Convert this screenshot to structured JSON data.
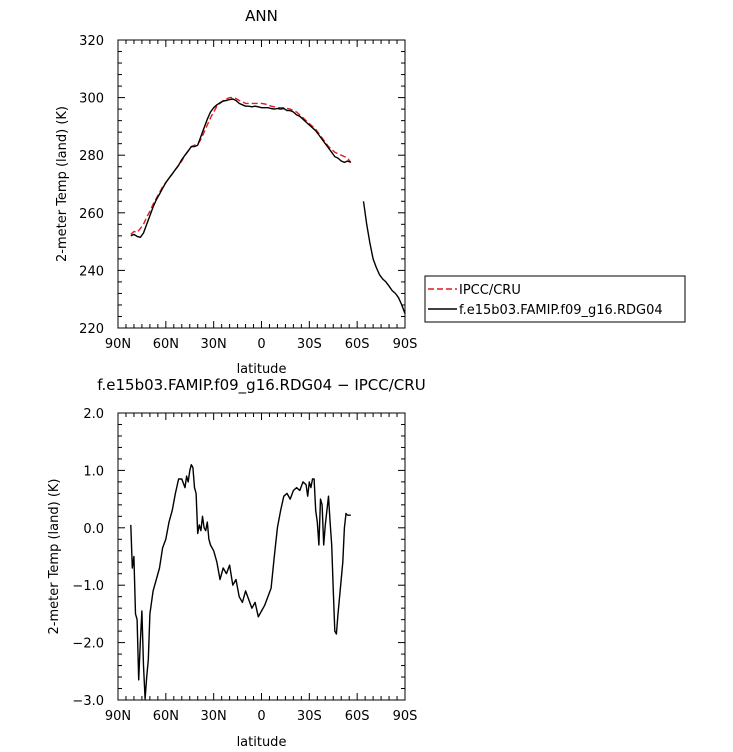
{
  "chart_data": [
    {
      "type": "line",
      "title": "ANN",
      "xlabel": "latitude",
      "ylabel": "2-meter Temp (land) (K)",
      "xlim": [
        90,
        -90
      ],
      "ylim": [
        220,
        320
      ],
      "xticks": [
        90,
        60,
        30,
        0,
        -30,
        -60,
        -90
      ],
      "xtick_labels": [
        "90N",
        "60N",
        "30N",
        "0",
        "30S",
        "60S",
        "90S"
      ],
      "yticks": [
        220,
        240,
        260,
        280,
        300,
        320
      ],
      "ytick_labels": [
        "220",
        "240",
        "260",
        "280",
        "300",
        "320"
      ],
      "legend_position": "outside-right",
      "series": [
        {
          "name": "IPCC/CRU",
          "color": "#e41a1c",
          "dash": "dashed",
          "x": [
            82,
            80,
            78,
            76,
            74,
            72,
            70,
            68,
            66,
            64,
            62,
            60,
            58,
            56,
            54,
            52,
            50,
            48,
            46,
            44,
            42,
            40,
            38,
            36,
            34,
            32,
            30,
            28,
            26,
            24,
            22,
            20,
            18,
            16,
            14,
            12,
            10,
            8,
            6,
            4,
            2,
            0,
            -2,
            -4,
            -6,
            -8,
            -10,
            -12,
            -14,
            -16,
            -18,
            -20,
            -22,
            -24,
            -26,
            -28,
            -30,
            -32,
            -34,
            -36,
            -38,
            -40,
            -42,
            -44,
            -46,
            -48,
            -50,
            -52,
            -54,
            -56
          ],
          "y": [
            252.5,
            253.5,
            253.2,
            254.5,
            256.0,
            258.5,
            260.5,
            263.0,
            265.0,
            267.0,
            269.0,
            270.5,
            272.0,
            273.5,
            275.0,
            276.5,
            278.0,
            280.0,
            281.5,
            283.0,
            283.5,
            283.8,
            285.5,
            288.0,
            290.5,
            293.0,
            295.0,
            297.0,
            298.0,
            299.0,
            299.5,
            300.0,
            300.0,
            299.7,
            299.0,
            298.5,
            298.0,
            298.0,
            298.0,
            298.0,
            298.0,
            298.0,
            297.8,
            297.5,
            297.0,
            296.8,
            296.5,
            296.5,
            296.5,
            296.2,
            296.0,
            295.5,
            295.0,
            294.0,
            293.0,
            292.0,
            291.0,
            290.0,
            289.0,
            287.5,
            286.0,
            284.5,
            283.0,
            282.0,
            281.0,
            280.5,
            280.0,
            279.5,
            279.0,
            277.5
          ]
        },
        {
          "name": "f.e15b03.FAMIP.f09_g16.RDG04",
          "color": "#000000",
          "dash": "solid",
          "segments": [
            {
              "x": [
                82,
                80,
                78,
                76,
                74,
                72,
                70,
                68,
                66,
                64,
                62,
                60,
                58,
                56,
                54,
                52,
                50,
                48,
                46,
                44,
                42,
                40,
                38,
                36,
                34,
                32,
                30,
                28,
                26,
                24,
                22,
                20,
                18,
                16,
                14,
                12,
                10,
                8,
                6,
                4,
                2,
                0,
                -2,
                -4,
                -6,
                -8,
                -10,
                -12,
                -14,
                -16,
                -18,
                -20,
                -22,
                -24,
                -26,
                -28,
                -30,
                -32,
                -34,
                -36,
                -38,
                -40,
                -42,
                -44,
                -46,
                -48,
                -50,
                -52,
                -54,
                -56
              ],
              "y": [
                252.0,
                252.5,
                251.8,
                251.5,
                253.0,
                256.0,
                259.0,
                262.0,
                264.5,
                266.5,
                268.5,
                270.5,
                272.0,
                273.5,
                275.0,
                276.5,
                278.5,
                280.0,
                281.5,
                283.0,
                283.0,
                283.5,
                286.5,
                289.5,
                292.5,
                295.0,
                296.5,
                297.5,
                298.2,
                298.8,
                299.0,
                299.3,
                299.5,
                299.0,
                298.0,
                297.5,
                297.0,
                297.0,
                296.8,
                297.0,
                296.8,
                296.5,
                296.5,
                296.5,
                296.2,
                296.0,
                296.2,
                296.0,
                296.2,
                295.5,
                295.5,
                295.0,
                294.0,
                293.5,
                292.5,
                291.5,
                290.5,
                289.5,
                288.5,
                287.0,
                285.5,
                284.0,
                282.5,
                281.0,
                279.5,
                279.0,
                278.0,
                277.5,
                278.0,
                277.5
              ]
            },
            {
              "x": [
                -64,
                -66,
                -68,
                -70,
                -72,
                -74,
                -76,
                -78,
                -80,
                -82,
                -84,
                -86,
                -88,
                -90
              ],
              "y": [
                264.0,
                256.0,
                249.5,
                244.0,
                241.0,
                238.5,
                237.0,
                236.0,
                234.5,
                233.0,
                232.0,
                230.5,
                228.0,
                225.0
              ]
            }
          ]
        }
      ]
    },
    {
      "type": "line",
      "title": "f.e15b03.FAMIP.f09_g16.RDG04 − IPCC/CRU",
      "xlabel": "latitude",
      "ylabel": "2-meter Temp (land) (K)",
      "xlim": [
        90,
        -90
      ],
      "ylim": [
        -3.0,
        2.0
      ],
      "xticks": [
        90,
        60,
        30,
        0,
        -30,
        -60,
        -90
      ],
      "xtick_labels": [
        "90N",
        "60N",
        "30N",
        "0",
        "30S",
        "60S",
        "90S"
      ],
      "yticks": [
        -3.0,
        -2.0,
        -1.0,
        0.0,
        1.0,
        2.0
      ],
      "ytick_labels": [
        "−3.0",
        "−2.0",
        "−1.0",
        "0.0",
        "1.0",
        "2.0"
      ],
      "series": [
        {
          "color": "#000000",
          "dash": "solid",
          "x": [
            82,
            81,
            80,
            79,
            78,
            77,
            76,
            75,
            74,
            73,
            72,
            71,
            70,
            68,
            66,
            64,
            62,
            60,
            58,
            56,
            54,
            52,
            50,
            48,
            47,
            46,
            45,
            44,
            43,
            42,
            41,
            40,
            39,
            38,
            37,
            36,
            35,
            34,
            33,
            32,
            30,
            28,
            26,
            24,
            22,
            20,
            18,
            16,
            14,
            12,
            10,
            8,
            6,
            4,
            2,
            0,
            -2,
            -4,
            -6,
            -8,
            -10,
            -12,
            -14,
            -16,
            -18,
            -20,
            -22,
            -24,
            -26,
            -28,
            -29,
            -30,
            -31,
            -32,
            -33,
            -34,
            -35,
            -36,
            -37,
            -38,
            -39,
            -40,
            -41,
            -42,
            -43,
            -44,
            -45,
            -46,
            -47,
            -48,
            -49,
            -50,
            -51,
            -52,
            -53,
            -54,
            -55,
            -56
          ],
          "y": [
            0.05,
            -0.7,
            -0.5,
            -1.5,
            -1.6,
            -2.65,
            -2.0,
            -1.45,
            -2.4,
            -2.98,
            -2.6,
            -2.3,
            -1.5,
            -1.1,
            -0.9,
            -0.7,
            -0.35,
            -0.2,
            0.1,
            0.3,
            0.6,
            0.85,
            0.85,
            0.7,
            0.9,
            0.8,
            1.0,
            1.1,
            1.05,
            0.7,
            0.6,
            -0.1,
            0.05,
            -0.05,
            0.2,
            0.0,
            -0.05,
            0.1,
            -0.2,
            -0.3,
            -0.4,
            -0.6,
            -0.9,
            -0.7,
            -0.8,
            -0.65,
            -1.0,
            -0.9,
            -1.2,
            -1.3,
            -1.1,
            -1.25,
            -1.4,
            -1.3,
            -1.55,
            -1.45,
            -1.35,
            -1.2,
            -1.05,
            -0.5,
            0.0,
            0.3,
            0.55,
            0.6,
            0.5,
            0.65,
            0.7,
            0.65,
            0.8,
            0.75,
            0.55,
            0.8,
            0.7,
            0.85,
            0.85,
            0.3,
            0.1,
            -0.3,
            0.5,
            0.4,
            -0.3,
            0.05,
            0.3,
            0.55,
            0.1,
            -0.3,
            -1.1,
            -1.8,
            -1.85,
            -1.5,
            -1.2,
            -0.9,
            -0.6,
            0.0,
            0.25,
            0.22,
            0.22,
            0.22
          ]
        }
      ]
    }
  ]
}
